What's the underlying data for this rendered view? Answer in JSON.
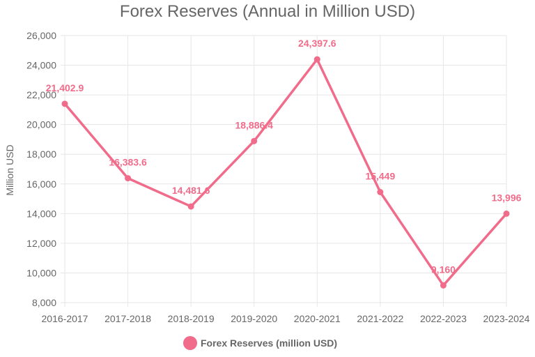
{
  "chart_data": {
    "type": "line",
    "title": "Forex Reserves (Annual in Million USD)",
    "ylabel": "Million USD",
    "xlabel": "",
    "categories": [
      "2016-2017",
      "2017-2018",
      "2018-2019",
      "2019-2020",
      "2020-2021",
      "2021-2022",
      "2022-2023",
      "2023-2024"
    ],
    "ylim": [
      8000,
      26000
    ],
    "yticks": [
      "8,000",
      "10,000",
      "12,000",
      "14,000",
      "16,000",
      "18,000",
      "20,000",
      "22,000",
      "24,000",
      "26,000"
    ],
    "grid": true,
    "legend_position": "bottom",
    "series": [
      {
        "name": "Forex Reserves (million USD)",
        "color": "#f06c8a",
        "values": [
          21402.9,
          16383.6,
          14481.6,
          18886.4,
          24397.6,
          15449,
          9160,
          13996
        ],
        "labels": [
          "21,402.9",
          "16,383.6",
          "14,481.6",
          "18,886.4",
          "24,397.6",
          "15,449",
          "9,160",
          "13,996"
        ]
      }
    ]
  }
}
